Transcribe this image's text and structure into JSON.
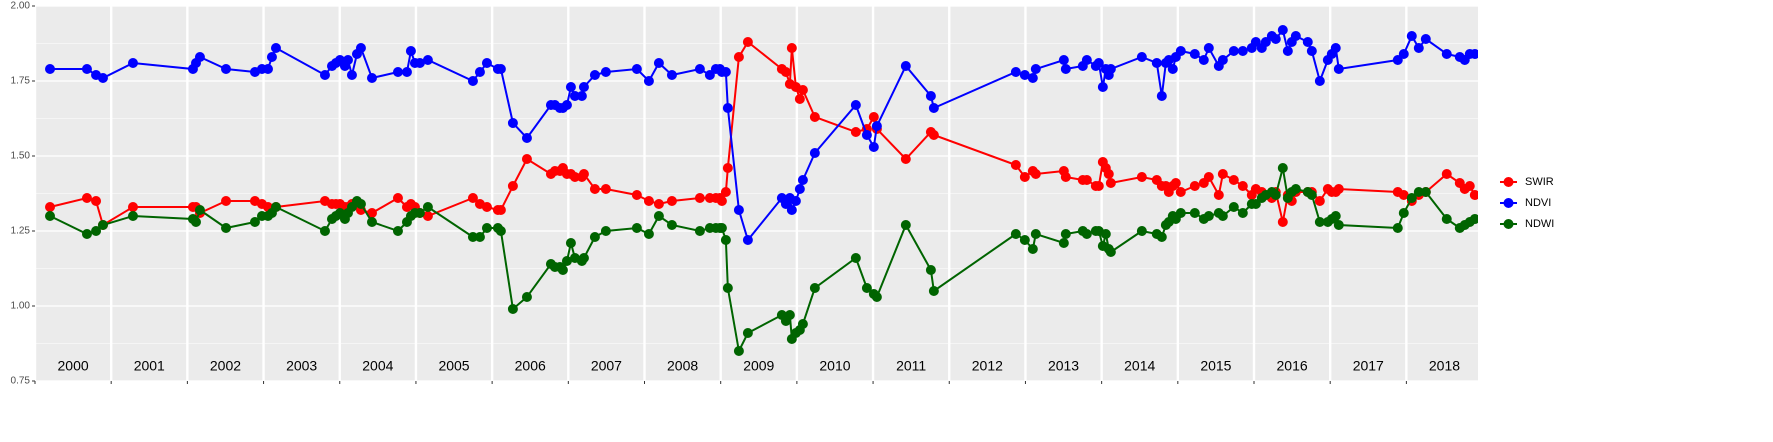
{
  "chart_data": {
    "type": "line",
    "x": [
      2000.197,
      2000.682,
      2000.801,
      2000.892,
      2001.286,
      2002.073,
      2002.113,
      2002.165,
      2002.507,
      2002.887,
      2002.979,
      2003.058,
      2003.11,
      2003.163,
      2003.806,
      2003.898,
      2003.95,
      2004.003,
      2004.068,
      2004.108,
      2004.16,
      2004.226,
      2004.278,
      2004.423,
      2004.764,
      2004.882,
      2004.934,
      2004.987,
      2005.052,
      2005.157,
      2005.748,
      2005.84,
      2005.932,
      2006.076,
      2006.115,
      2006.273,
      2006.457,
      2006.772,
      2006.824,
      2006.89,
      2006.929,
      2006.982,
      2007.034,
      2007.087,
      2007.178,
      2007.205,
      2007.349,
      2007.493,
      2007.9,
      2008.058,
      2008.189,
      2008.36,
      2008.727,
      2008.858,
      2008.937,
      2008.99,
      2009.016,
      2009.068,
      2009.094,
      2009.239,
      2009.357,
      2009.803,
      2009.856,
      2009.908,
      2009.934,
      2009.987,
      2010.039,
      2010.079,
      2010.236,
      2010.774,
      2010.919,
      2011.01,
      2011.05,
      2011.43,
      2011.759,
      2011.798,
      2012.874,
      2012.992,
      2013.097,
      2013.136,
      2013.504,
      2013.53,
      2013.753,
      2013.806,
      2013.924,
      2013.963,
      2014.016,
      2014.055,
      2014.094,
      2014.121,
      2014.528,
      2014.724,
      2014.79,
      2014.843,
      2014.882,
      2014.934,
      2014.974,
      2015.039,
      2015.223,
      2015.341,
      2015.407,
      2015.538,
      2015.591,
      2015.735,
      2015.853,
      2015.971,
      2016.024,
      2016.102,
      2016.155,
      2016.234,
      2016.286,
      2016.378,
      2016.444,
      2016.496,
      2016.549,
      2016.706,
      2016.759,
      2016.864,
      2016.969,
      2017.021,
      2017.073,
      2017.113,
      2017.887,
      2017.966,
      2018.071,
      2018.163,
      2018.255,
      2018.53,
      2018.701,
      2018.766,
      2018.832,
      2018.898
    ],
    "series": [
      {
        "name": "SWIR",
        "color": "#ff0000",
        "values": [
          1.33,
          1.36,
          1.35,
          1.27,
          1.33,
          1.33,
          1.33,
          1.31,
          1.35,
          1.35,
          1.34,
          1.33,
          1.32,
          1.33,
          1.35,
          1.34,
          1.34,
          1.34,
          1.33,
          1.33,
          1.34,
          1.34,
          1.32,
          1.31,
          1.36,
          1.33,
          1.34,
          1.33,
          1.31,
          1.3,
          1.36,
          1.34,
          1.33,
          1.32,
          1.32,
          1.4,
          1.49,
          1.44,
          1.45,
          1.45,
          1.46,
          1.44,
          1.44,
          1.43,
          1.43,
          1.44,
          1.39,
          1.39,
          1.37,
          1.35,
          1.34,
          1.35,
          1.36,
          1.36,
          1.36,
          1.36,
          1.35,
          1.38,
          1.46,
          1.83,
          1.88,
          1.79,
          1.78,
          1.74,
          1.86,
          1.73,
          1.69,
          1.72,
          1.63,
          1.58,
          1.59,
          1.63,
          1.59,
          1.49,
          1.58,
          1.57,
          1.47,
          1.43,
          1.45,
          1.44,
          1.45,
          1.43,
          1.42,
          1.42,
          1.4,
          1.4,
          1.48,
          1.46,
          1.44,
          1.41,
          1.43,
          1.42,
          1.4,
          1.4,
          1.38,
          1.4,
          1.41,
          1.38,
          1.4,
          1.41,
          1.43,
          1.37,
          1.44,
          1.42,
          1.4,
          1.37,
          1.39,
          1.38,
          1.37,
          1.36,
          1.38,
          1.28,
          1.37,
          1.35,
          1.38,
          1.38,
          1.38,
          1.35,
          1.39,
          1.38,
          1.38,
          1.39,
          1.38,
          1.37,
          1.35,
          1.37,
          1.38,
          1.44,
          1.41,
          1.39,
          1.4,
          1.37
        ]
      },
      {
        "name": "NDVI",
        "color": "#0000ff",
        "values": [
          1.79,
          1.79,
          1.77,
          1.76,
          1.81,
          1.79,
          1.81,
          1.83,
          1.79,
          1.78,
          1.79,
          1.79,
          1.83,
          1.86,
          1.77,
          1.8,
          1.81,
          1.82,
          1.8,
          1.82,
          1.77,
          1.84,
          1.86,
          1.76,
          1.78,
          1.78,
          1.85,
          1.81,
          1.81,
          1.82,
          1.75,
          1.78,
          1.81,
          1.79,
          1.79,
          1.61,
          1.56,
          1.67,
          1.67,
          1.66,
          1.66,
          1.67,
          1.73,
          1.7,
          1.7,
          1.73,
          1.77,
          1.78,
          1.79,
          1.75,
          1.81,
          1.77,
          1.79,
          1.77,
          1.79,
          1.79,
          1.78,
          1.78,
          1.66,
          1.32,
          1.22,
          1.36,
          1.34,
          1.36,
          1.32,
          1.35,
          1.39,
          1.42,
          1.51,
          1.67,
          1.57,
          1.53,
          1.6,
          1.8,
          1.7,
          1.66,
          1.78,
          1.77,
          1.76,
          1.79,
          1.82,
          1.79,
          1.8,
          1.82,
          1.8,
          1.81,
          1.73,
          1.79,
          1.77,
          1.79,
          1.83,
          1.81,
          1.7,
          1.81,
          1.82,
          1.79,
          1.83,
          1.85,
          1.84,
          1.82,
          1.86,
          1.8,
          1.82,
          1.85,
          1.85,
          1.86,
          1.88,
          1.86,
          1.88,
          1.9,
          1.89,
          1.92,
          1.85,
          1.88,
          1.9,
          1.88,
          1.85,
          1.75,
          1.82,
          1.84,
          1.86,
          1.79,
          1.82,
          1.84,
          1.9,
          1.86,
          1.89,
          1.84,
          1.83,
          1.82,
          1.84,
          1.84
        ]
      },
      {
        "name": "NDWI",
        "color": "#006400",
        "values": [
          1.3,
          1.24,
          1.25,
          1.27,
          1.3,
          1.29,
          1.28,
          1.32,
          1.26,
          1.28,
          1.3,
          1.3,
          1.31,
          1.33,
          1.25,
          1.29,
          1.3,
          1.31,
          1.29,
          1.31,
          1.33,
          1.35,
          1.34,
          1.28,
          1.25,
          1.28,
          1.3,
          1.31,
          1.31,
          1.33,
          1.23,
          1.23,
          1.26,
          1.26,
          1.25,
          0.99,
          1.03,
          1.14,
          1.13,
          1.13,
          1.12,
          1.15,
          1.21,
          1.16,
          1.15,
          1.16,
          1.23,
          1.25,
          1.26,
          1.24,
          1.3,
          1.27,
          1.25,
          1.26,
          1.26,
          1.26,
          1.26,
          1.22,
          1.06,
          0.85,
          0.91,
          0.97,
          0.95,
          0.97,
          0.89,
          0.91,
          0.92,
          0.94,
          1.06,
          1.16,
          1.06,
          1.04,
          1.03,
          1.27,
          1.12,
          1.05,
          1.24,
          1.22,
          1.19,
          1.24,
          1.21,
          1.24,
          1.25,
          1.24,
          1.25,
          1.25,
          1.2,
          1.24,
          1.19,
          1.18,
          1.25,
          1.24,
          1.23,
          1.27,
          1.28,
          1.3,
          1.29,
          1.31,
          1.31,
          1.29,
          1.3,
          1.31,
          1.3,
          1.33,
          1.31,
          1.34,
          1.34,
          1.36,
          1.37,
          1.38,
          1.37,
          1.46,
          1.36,
          1.38,
          1.39,
          1.38,
          1.37,
          1.28,
          1.28,
          1.29,
          1.3,
          1.27,
          1.26,
          1.31,
          1.36,
          1.38,
          1.38,
          1.29,
          1.26,
          1.27,
          1.28,
          1.29
        ]
      }
    ],
    "years": [
      2000,
      2001,
      2002,
      2003,
      2004,
      2005,
      2006,
      2007,
      2008,
      2009,
      2010,
      2011,
      2012,
      2013,
      2014,
      2015,
      2016,
      2017,
      2018
    ],
    "xlim": [
      2000,
      2018.94
    ],
    "ylim": [
      0.75,
      2
    ],
    "yticks": [
      {
        "value": 0.75,
        "label": "0.75"
      },
      {
        "value": 1,
        "label": "1.00"
      },
      {
        "value": 1.25,
        "label": "1.25"
      },
      {
        "value": 1.5,
        "label": "1.50"
      },
      {
        "value": 1.75,
        "label": "1.75"
      },
      {
        "value": 2,
        "label": "2.00"
      }
    ],
    "grid": true,
    "legend": "right"
  }
}
